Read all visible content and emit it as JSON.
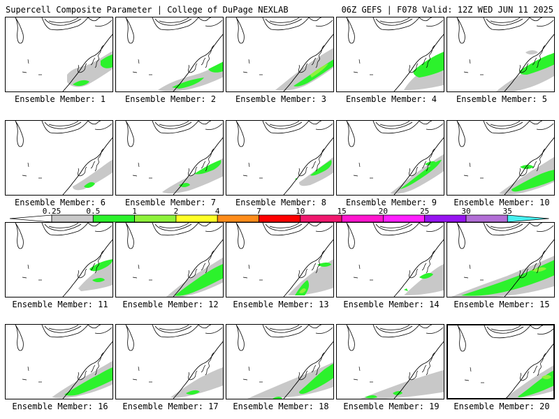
{
  "header": {
    "left": "Supercell Composite Parameter | College of DuPage NEXLAB",
    "right": "06Z GEFS | F078 Valid: 12Z WED JUN 11 2025"
  },
  "colorbar": {
    "labels": [
      "0.25",
      "0.5",
      "1",
      "2",
      "4",
      "7",
      "10",
      "15",
      "20",
      "25",
      "30",
      "35"
    ],
    "colors": [
      "#c8c8c8",
      "#2cf22c",
      "#8ef23b",
      "#ffff27",
      "#ff8c1a",
      "#ff0000",
      "#f0186e",
      "#ff16ce",
      "#ff20ff",
      "#9614f0",
      "#b26ed6",
      "#46f0f0"
    ]
  },
  "members": [
    {
      "label": "Ensemble Member: 1"
    },
    {
      "label": "Ensemble Member: 2"
    },
    {
      "label": "Ensemble Member: 3"
    },
    {
      "label": "Ensemble Member: 4"
    },
    {
      "label": "Ensemble Member: 5"
    },
    {
      "label": "Ensemble Member: 6"
    },
    {
      "label": "Ensemble Member: 7"
    },
    {
      "label": "Ensemble Member: 8"
    },
    {
      "label": "Ensemble Member: 9"
    },
    {
      "label": "Ensemble Member: 10"
    },
    {
      "label": "Ensemble Member: 11"
    },
    {
      "label": "Ensemble Member: 12"
    },
    {
      "label": "Ensemble Member: 13"
    },
    {
      "label": "Ensemble Member: 14"
    },
    {
      "label": "Ensemble Member: 15"
    },
    {
      "label": "Ensemble Member: 16"
    },
    {
      "label": "Ensemble Member: 17"
    },
    {
      "label": "Ensemble Member: 18"
    },
    {
      "label": "Ensemble Member: 19"
    },
    {
      "label": "Ensemble Member: 20",
      "selected": true
    }
  ]
}
